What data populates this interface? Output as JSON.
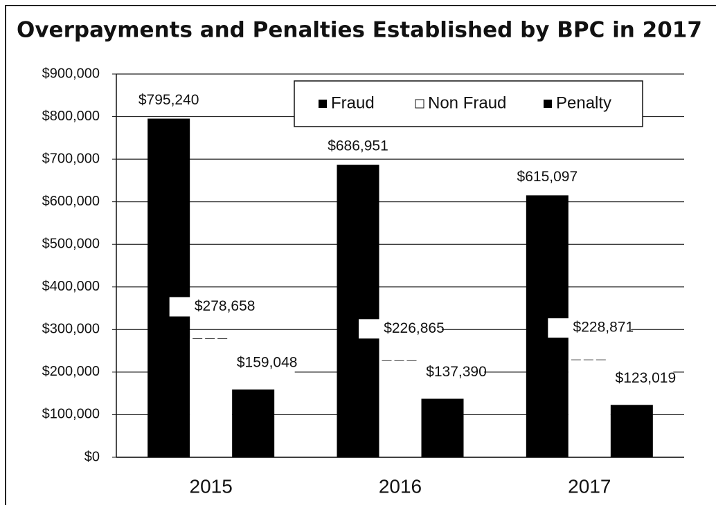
{
  "chart_data": {
    "type": "bar",
    "title": "Overpayments and Penalties Established by BPC in 2017",
    "categories": [
      "2015",
      "2016",
      "2017"
    ],
    "series": [
      {
        "name": "Fraud",
        "color": "#000000",
        "values": [
          795240,
          686951,
          615097
        ],
        "value_labels": [
          "$795,240",
          "$686,951",
          "$615,097"
        ]
      },
      {
        "name": "Non Fraud",
        "color": "#ffffff",
        "values": [
          278658,
          226865,
          228871
        ],
        "value_labels": [
          "$278,658",
          "$226,865",
          "$228,871"
        ]
      },
      {
        "name": "Penalty",
        "color": "#000000",
        "values": [
          159048,
          137390,
          123019
        ],
        "value_labels": [
          "$159,048",
          "$137,390",
          "$123,019"
        ]
      }
    ],
    "ylim": [
      0,
      900000
    ],
    "yticks": [
      {
        "value": 0,
        "label": "$0"
      },
      {
        "value": 100000,
        "label": "$100,000"
      },
      {
        "value": 200000,
        "label": "$200,000"
      },
      {
        "value": 300000,
        "label": "$300,000"
      },
      {
        "value": 400000,
        "label": "$400,000"
      },
      {
        "value": 500000,
        "label": "$500,000"
      },
      {
        "value": 600000,
        "label": "$600,000"
      },
      {
        "value": 700000,
        "label": "$700,000"
      },
      {
        "value": 800000,
        "label": "$800,000"
      },
      {
        "value": 900000,
        "label": "$900,000"
      }
    ],
    "grid": true,
    "legend": "top-right"
  }
}
